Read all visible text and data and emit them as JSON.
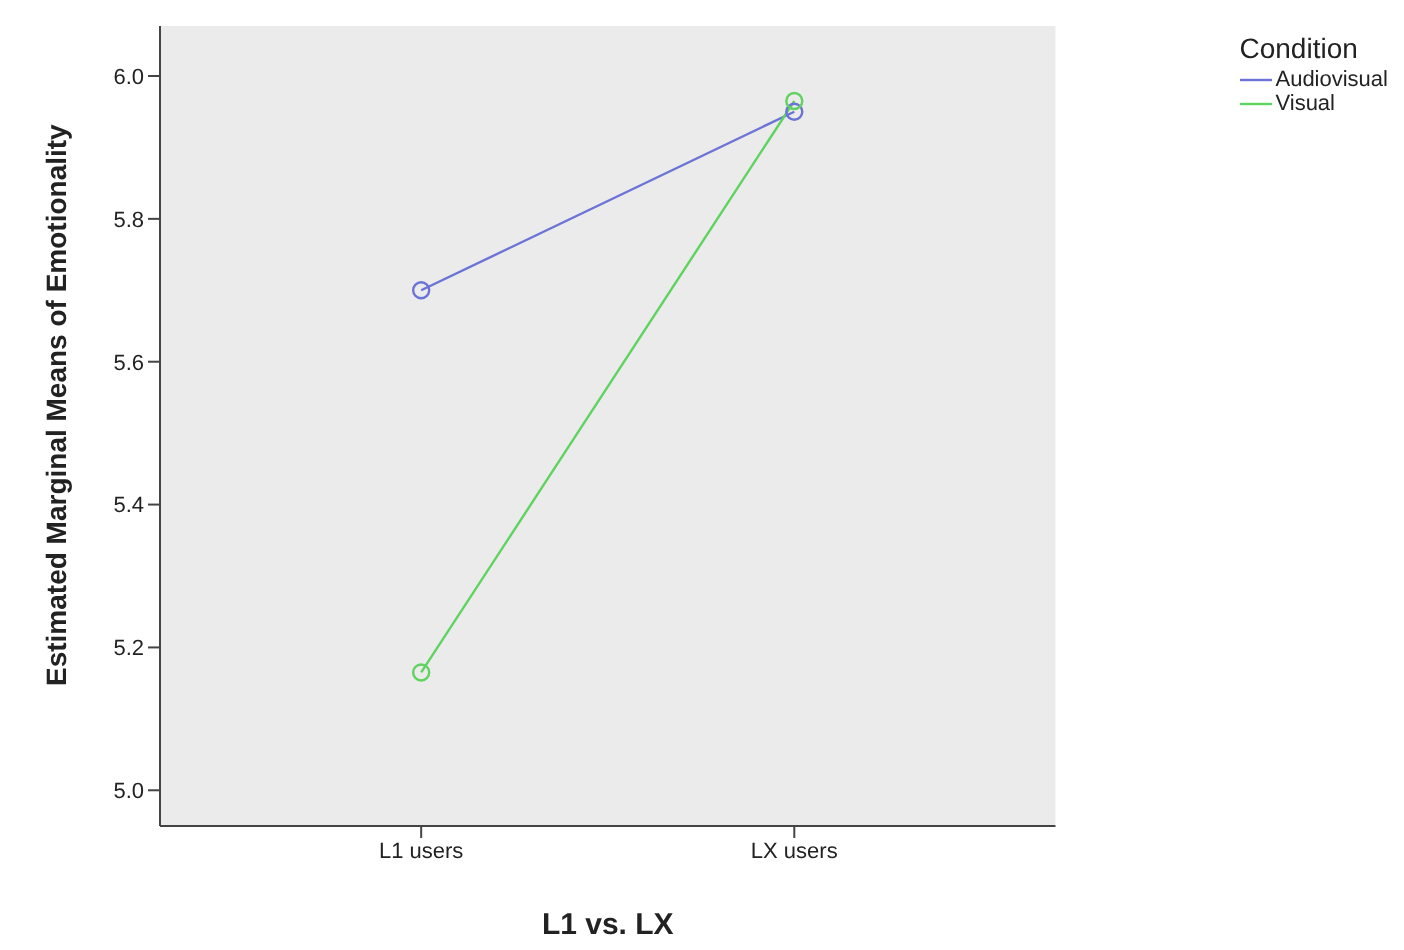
{
  "chart_data": {
    "type": "line",
    "xlabel": "L1 vs. LX",
    "ylabel": "Estimated Marginal Means of Emotionality",
    "legend_title": "Condition",
    "categories": [
      "L1 users",
      "LX users"
    ],
    "series": [
      {
        "name": "Audiovisual",
        "color": "#6b73d6",
        "values": [
          5.7,
          5.95
        ]
      },
      {
        "name": "Visual",
        "color": "#5fd35f",
        "values": [
          5.165,
          5.965
        ]
      }
    ],
    "ylim": [
      4.95,
      6.07
    ],
    "yticks": [
      {
        "value": 5.0,
        "label": "5.0"
      },
      {
        "value": 5.2,
        "label": "5.2"
      },
      {
        "value": 5.4,
        "label": "5.4"
      },
      {
        "value": 5.6,
        "label": "5.6"
      },
      {
        "value": 5.8,
        "label": "5.8"
      },
      {
        "value": 6.0,
        "label": "6.0"
      }
    ],
    "grid": false,
    "legend": "top right",
    "marker": "circle",
    "line_style": "solid"
  }
}
